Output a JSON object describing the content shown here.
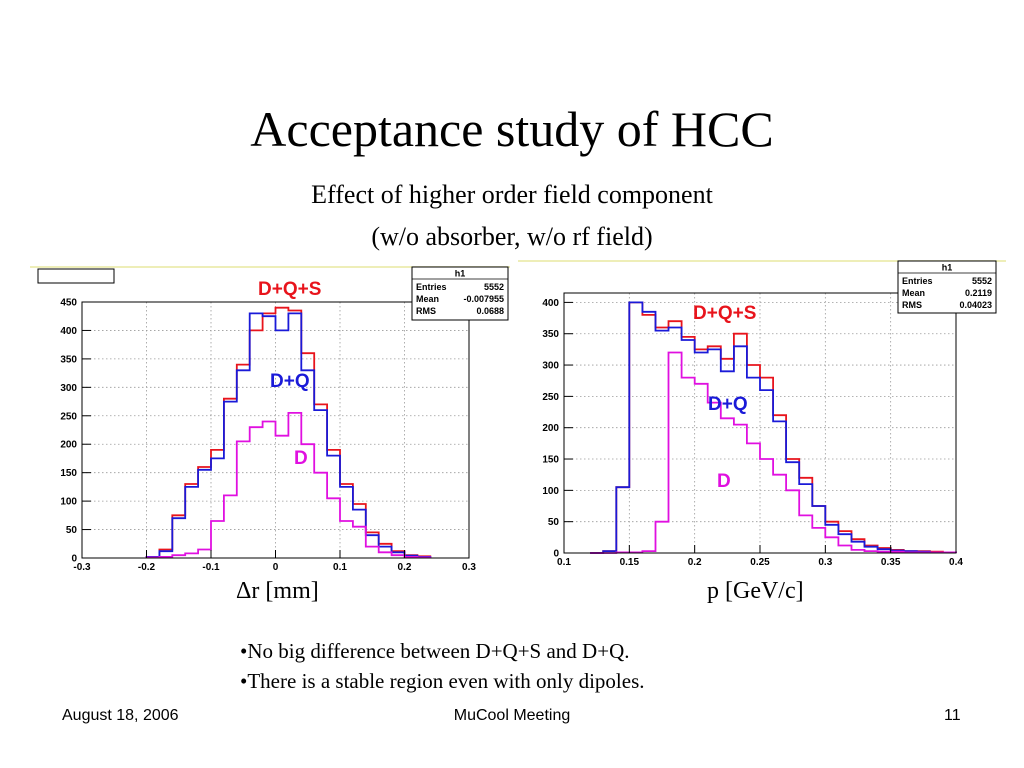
{
  "slide": {
    "title": "Acceptance study of HCC",
    "subtitle_line1": "Effect of higher order field component",
    "subtitle_line2": "(w/o absorber, w/o rf field)",
    "bullets": [
      "No big difference between D+Q+S and D+Q.",
      "There is a stable region even with only dipoles."
    ],
    "footer": {
      "date": "August 18, 2006",
      "event": "MuCool Meeting",
      "page": "11"
    }
  },
  "chart_data": [
    {
      "type": "histogram",
      "xlabel": "Δr [mm]",
      "xlim": [
        -0.3,
        0.3
      ],
      "ylim": [
        0,
        450
      ],
      "xticks": [
        "-0.3",
        "-0.2",
        "-0.1",
        "0",
        "0.1",
        "0.2",
        "0.3"
      ],
      "yticks": [
        "0",
        "50",
        "100",
        "150",
        "200",
        "250",
        "300",
        "350",
        "400",
        "450"
      ],
      "grid": true,
      "bin_edges": [
        -0.2,
        -0.18,
        -0.16,
        -0.14,
        -0.12,
        -0.1,
        -0.08,
        -0.06,
        -0.04,
        -0.02,
        0,
        0.02,
        0.04,
        0.06,
        0.08,
        0.1,
        0.12,
        0.14,
        0.16,
        0.18,
        0.2,
        0.22,
        0.24
      ],
      "series": [
        {
          "name": "D+Q+S",
          "color": "#e8141c",
          "values": [
            2,
            15,
            75,
            130,
            160,
            190,
            280,
            340,
            400,
            430,
            440,
            435,
            360,
            270,
            190,
            130,
            95,
            45,
            25,
            12,
            5,
            3
          ]
        },
        {
          "name": "D+Q",
          "color": "#1a1ad8",
          "values": [
            2,
            12,
            70,
            125,
            155,
            175,
            275,
            330,
            430,
            425,
            400,
            430,
            330,
            260,
            180,
            125,
            85,
            40,
            20,
            10,
            4,
            2
          ]
        },
        {
          "name": "D",
          "color": "#e010e0",
          "values": [
            1,
            2,
            5,
            8,
            15,
            65,
            110,
            205,
            230,
            240,
            215,
            255,
            200,
            150,
            105,
            65,
            55,
            20,
            10,
            5,
            2,
            1
          ]
        }
      ],
      "stats": {
        "name": "h1",
        "entries": "5552",
        "mean": "-0.007955",
        "rms": "0.0688"
      }
    },
    {
      "type": "histogram",
      "xlabel": "p [GeV/c]",
      "xlim": [
        0.1,
        0.4
      ],
      "ylim": [
        0,
        415
      ],
      "xticks": [
        "0.1",
        "0.15",
        "0.2",
        "0.25",
        "0.3",
        "0.35",
        "0.4"
      ],
      "yticks": [
        "0",
        "50",
        "100",
        "150",
        "200",
        "250",
        "300",
        "350",
        "400"
      ],
      "grid": true,
      "bin_edges": [
        0.12,
        0.13,
        0.14,
        0.15,
        0.16,
        0.17,
        0.18,
        0.19,
        0.2,
        0.21,
        0.22,
        0.23,
        0.24,
        0.25,
        0.26,
        0.27,
        0.28,
        0.29,
        0.3,
        0.31,
        0.32,
        0.33,
        0.34,
        0.35,
        0.36,
        0.37,
        0.38,
        0.39,
        0.4
      ],
      "series": [
        {
          "name": "D+Q+S",
          "color": "#e8141c",
          "values": [
            0,
            3,
            105,
            400,
            380,
            360,
            370,
            345,
            325,
            330,
            310,
            350,
            300,
            280,
            220,
            150,
            120,
            75,
            50,
            35,
            22,
            12,
            8,
            5,
            3,
            3,
            2,
            1
          ]
        },
        {
          "name": "D+Q",
          "color": "#1a1ad8",
          "values": [
            0,
            3,
            105,
            400,
            385,
            355,
            360,
            340,
            320,
            325,
            290,
            330,
            280,
            260,
            210,
            145,
            110,
            75,
            45,
            30,
            18,
            10,
            6,
            4,
            3,
            2,
            1,
            1
          ]
        },
        {
          "name": "D",
          "color": "#e010e0",
          "values": [
            0,
            0,
            1,
            1,
            3,
            50,
            320,
            280,
            270,
            240,
            215,
            205,
            175,
            150,
            125,
            100,
            60,
            40,
            25,
            12,
            5,
            3,
            2,
            2,
            1,
            1,
            1,
            1
          ]
        }
      ],
      "stats": {
        "name": "h1",
        "entries": "5552",
        "mean": "0.2119",
        "rms": "0.04023"
      }
    }
  ]
}
